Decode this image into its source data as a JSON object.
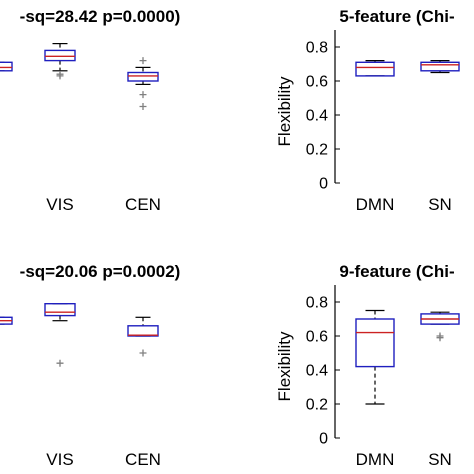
{
  "chart_data": [
    {
      "type": "box",
      "title": "-sq=28.42 p=0.0000)",
      "ylabel": "",
      "ylim": [
        0,
        0.9
      ],
      "categories": [
        "",
        "VIS",
        "CEN"
      ],
      "boxes": [
        {
          "category": "",
          "min": 0.66,
          "q1": 0.66,
          "median": 0.68,
          "q3": 0.71,
          "max": 0.71,
          "outliers": []
        },
        {
          "category": "VIS",
          "min": 0.66,
          "q1": 0.72,
          "median": 0.745,
          "q3": 0.78,
          "max": 0.82,
          "outliers": [
            0.63,
            0.64
          ]
        },
        {
          "category": "CEN",
          "min": 0.58,
          "q1": 0.6,
          "median": 0.63,
          "q3": 0.65,
          "max": 0.68,
          "outliers": [
            0.72,
            0.52,
            0.45
          ]
        }
      ]
    },
    {
      "type": "box",
      "title": "5-feature (Chi-",
      "ylabel": "Flexibility",
      "ylim": [
        0,
        0.9
      ],
      "yticks": [
        "0",
        "0.2",
        "0.4",
        "0.6",
        "0.8"
      ],
      "categories": [
        "DMN",
        "SN"
      ],
      "boxes": [
        {
          "category": "DMN",
          "min": 0.63,
          "q1": 0.63,
          "median": 0.68,
          "q3": 0.71,
          "max": 0.72,
          "outliers": []
        },
        {
          "category": "SN",
          "min": 0.65,
          "q1": 0.66,
          "median": 0.695,
          "q3": 0.71,
          "max": 0.72,
          "outliers": []
        }
      ]
    },
    {
      "type": "box",
      "title": "-sq=20.06 p=0.0002)",
      "ylabel": "",
      "ylim": [
        0,
        0.9
      ],
      "categories": [
        "",
        "VIS",
        "CEN"
      ],
      "boxes": [
        {
          "category": "",
          "min": 0.67,
          "q1": 0.67,
          "median": 0.69,
          "q3": 0.71,
          "max": 0.71,
          "outliers": []
        },
        {
          "category": "VIS",
          "min": 0.69,
          "q1": 0.72,
          "median": 0.74,
          "q3": 0.79,
          "max": 0.79,
          "outliers": [
            0.44
          ]
        },
        {
          "category": "CEN",
          "min": 0.6,
          "q1": 0.6,
          "median": 0.605,
          "q3": 0.66,
          "max": 0.71,
          "outliers": [
            0.5
          ]
        }
      ]
    },
    {
      "type": "box",
      "title": "9-feature (Chi-",
      "ylabel": "Flexibility",
      "ylim": [
        0,
        0.9
      ],
      "yticks": [
        "0",
        "0.2",
        "0.4",
        "0.6",
        "0.8"
      ],
      "categories": [
        "DMN",
        "SN"
      ],
      "boxes": [
        {
          "category": "DMN",
          "min": 0.2,
          "q1": 0.42,
          "median": 0.62,
          "q3": 0.7,
          "max": 0.75,
          "outliers": []
        },
        {
          "category": "SN",
          "min": 0.67,
          "q1": 0.67,
          "median": 0.7,
          "q3": 0.73,
          "max": 0.74,
          "outliers": [
            0.6,
            0.59
          ]
        }
      ]
    }
  ],
  "colors": {
    "box": "#1f1fbf",
    "median": "#cc2222",
    "whisker": "#000000",
    "outlier": "#808080"
  }
}
